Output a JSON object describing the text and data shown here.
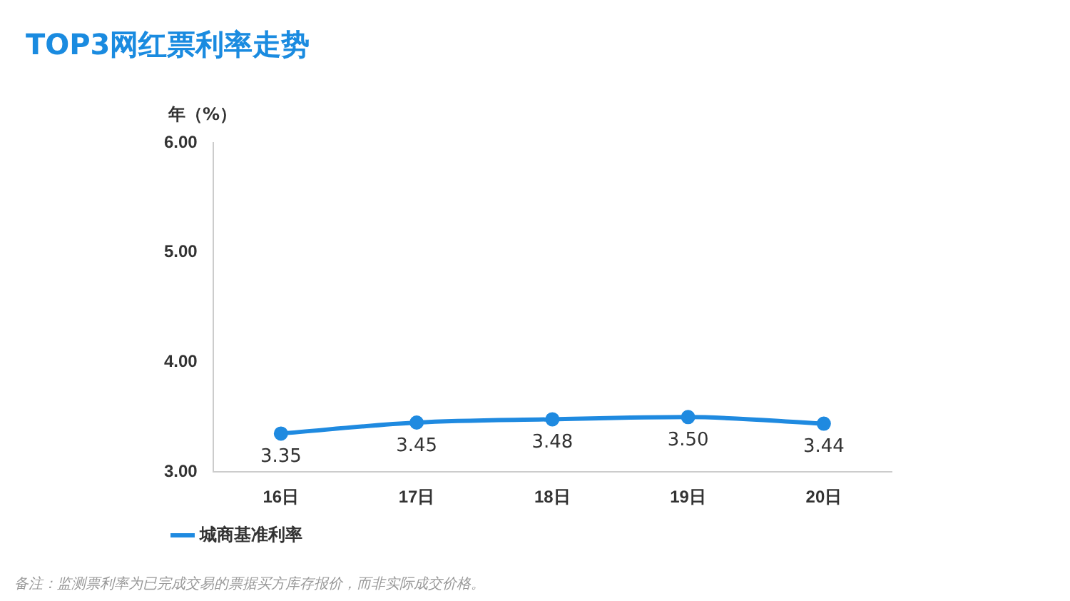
{
  "chart_data": {
    "type": "line",
    "title": "TOP3网红票利率走势",
    "ylabel": "年（%）",
    "categories": [
      "16日",
      "17日",
      "18日",
      "19日",
      "20日"
    ],
    "series": [
      {
        "name": "城商基准利率",
        "color": "#1f8ae0",
        "values": [
          3.35,
          3.45,
          3.48,
          3.5,
          3.44
        ],
        "value_labels": [
          "3.35",
          "3.45",
          "3.48",
          "3.50",
          "3.44"
        ]
      }
    ],
    "ylim": [
      3,
      6
    ],
    "yticks": [
      {
        "value": 3,
        "label": "3.00"
      },
      {
        "value": 4,
        "label": "4.00"
      },
      {
        "value": 5,
        "label": "5.00"
      },
      {
        "value": 6,
        "label": "6.00"
      }
    ],
    "grid": false,
    "legend": "bottom left",
    "marker": "circle",
    "line_style": "solid",
    "annotations": [
      "备注：监测票利率为已完成交易的票据买方库存报价，而非实际成交价格。"
    ]
  }
}
